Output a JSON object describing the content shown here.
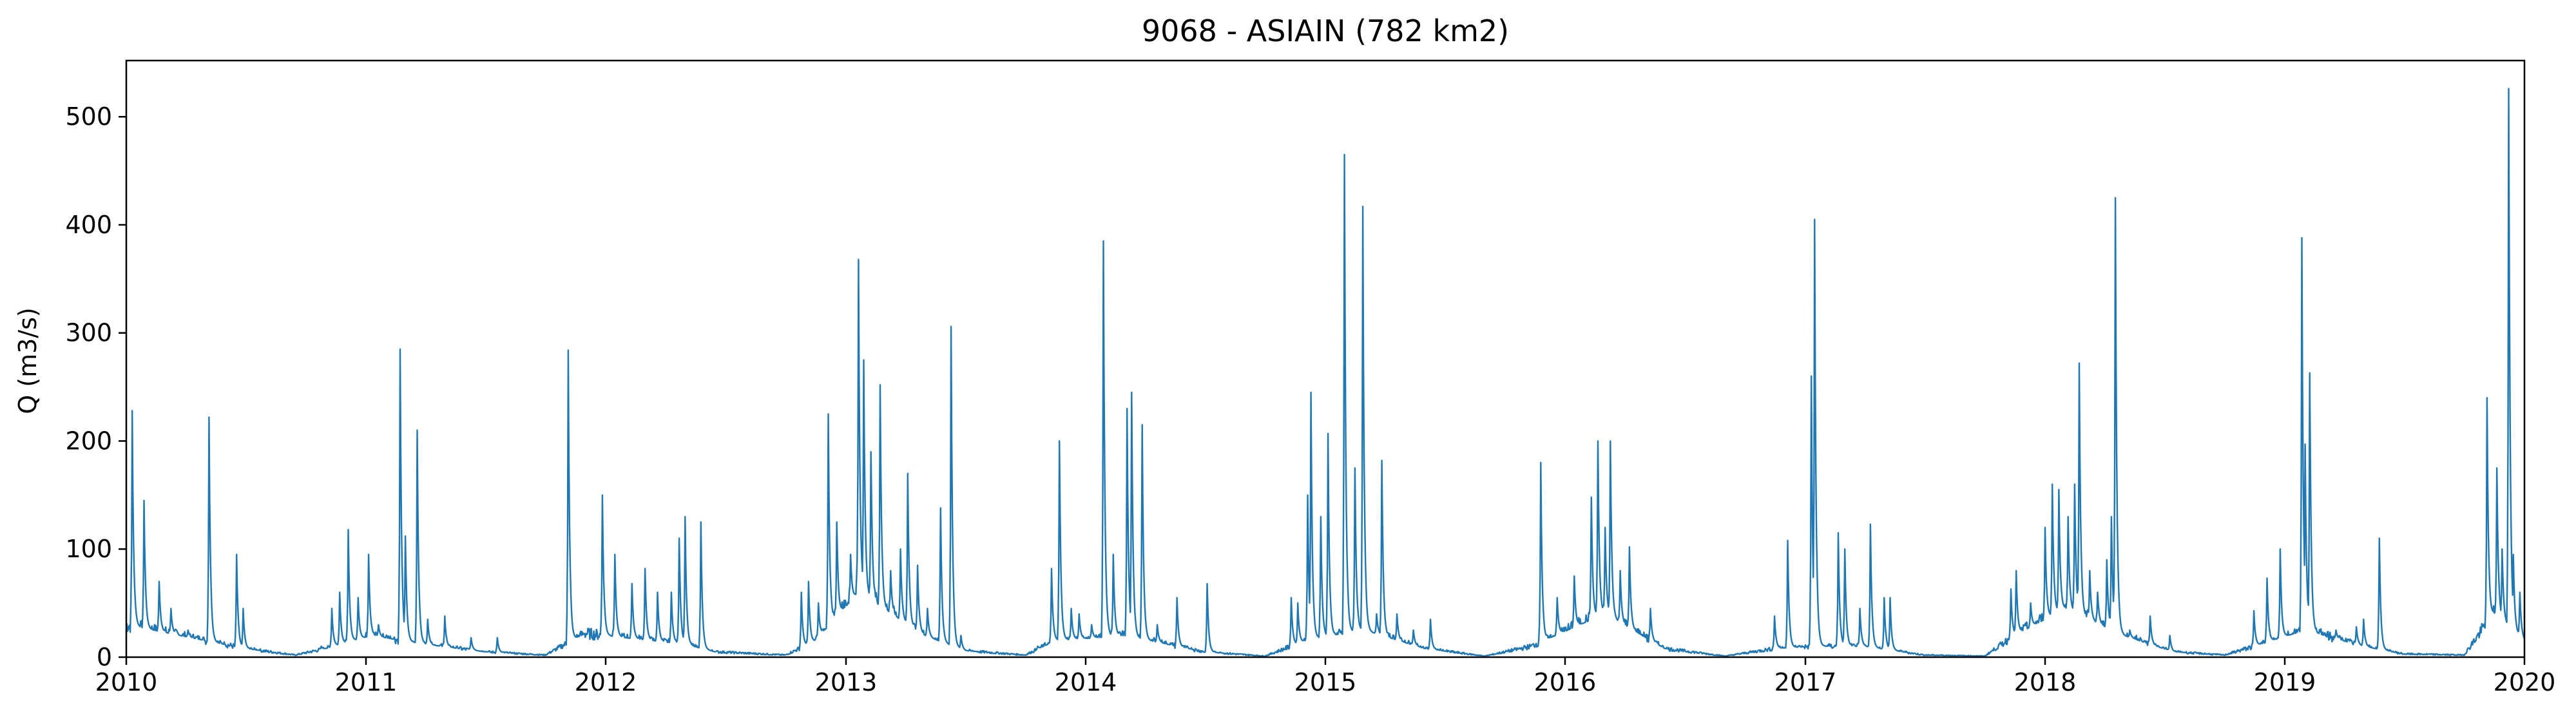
{
  "chart_data": {
    "type": "line",
    "title": "9068 - ASIAIN (782 km2)",
    "xlabel": "",
    "ylabel": "Q (m3/s)",
    "xlim": [
      "2010-01-01",
      "2020-01-01"
    ],
    "ylim": [
      0,
      552
    ],
    "x_ticks": [
      "2010",
      "2011",
      "2012",
      "2013",
      "2014",
      "2015",
      "2016",
      "2017",
      "2018",
      "2019",
      "2020"
    ],
    "y_ticks": [
      0,
      100,
      200,
      300,
      400,
      500
    ],
    "grid": false,
    "line_color": "#1f77b4",
    "baseflow": [
      [
        "2010-01-01",
        30
      ],
      [
        "2010-07-01",
        8
      ],
      [
        "2010-09-15",
        2
      ],
      [
        "2010-11-01",
        8
      ],
      [
        "2011-01-10",
        20
      ],
      [
        "2011-04-01",
        12
      ],
      [
        "2011-07-01",
        5
      ],
      [
        "2011-10-01",
        2
      ],
      [
        "2011-12-01",
        22
      ],
      [
        "2012-05-01",
        12
      ],
      [
        "2012-06-15",
        5
      ],
      [
        "2012-10-01",
        2
      ],
      [
        "2012-11-15",
        15
      ],
      [
        "2013-01-20",
        60
      ],
      [
        "2013-05-01",
        20
      ],
      [
        "2013-07-01",
        6
      ],
      [
        "2013-10-01",
        2
      ],
      [
        "2013-11-15",
        15
      ],
      [
        "2014-03-01",
        20
      ],
      [
        "2014-07-01",
        5
      ],
      [
        "2014-10-01",
        1
      ],
      [
        "2014-12-01",
        15
      ],
      [
        "2015-03-01",
        25
      ],
      [
        "2015-06-01",
        8
      ],
      [
        "2015-09-01",
        1
      ],
      [
        "2015-11-10",
        10
      ],
      [
        "2016-03-01",
        40
      ],
      [
        "2016-06-01",
        8
      ],
      [
        "2016-09-01",
        1
      ],
      [
        "2016-11-15",
        8
      ],
      [
        "2017-01-15",
        10
      ],
      [
        "2017-04-01",
        10
      ],
      [
        "2017-07-01",
        2
      ],
      [
        "2017-10-01",
        1
      ],
      [
        "2017-11-15",
        20
      ],
      [
        "2018-02-01",
        45
      ],
      [
        "2018-05-01",
        20
      ],
      [
        "2018-07-15",
        5
      ],
      [
        "2018-10-01",
        2
      ],
      [
        "2018-11-15",
        10
      ],
      [
        "2019-02-01",
        25
      ],
      [
        "2019-05-01",
        10
      ],
      [
        "2019-07-01",
        3
      ],
      [
        "2019-10-01",
        2
      ],
      [
        "2019-11-15",
        40
      ],
      [
        "2020-01-01",
        15
      ]
    ],
    "peaks": [
      [
        "2010-01-10",
        228
      ],
      [
        "2010-01-28",
        145
      ],
      [
        "2010-02-20",
        70
      ],
      [
        "2010-03-10",
        45
      ],
      [
        "2010-04-05",
        25
      ],
      [
        "2010-05-07",
        222
      ],
      [
        "2010-06-18",
        95
      ],
      [
        "2010-06-28",
        45
      ],
      [
        "2010-10-25",
        10
      ],
      [
        "2010-11-10",
        45
      ],
      [
        "2010-11-22",
        60
      ],
      [
        "2010-12-05",
        118
      ],
      [
        "2010-12-20",
        55
      ],
      [
        "2011-01-05",
        95
      ],
      [
        "2011-01-20",
        30
      ],
      [
        "2011-02-22",
        285
      ],
      [
        "2011-03-02",
        112
      ],
      [
        "2011-03-20",
        210
      ],
      [
        "2011-04-05",
        35
      ],
      [
        "2011-05-01",
        38
      ],
      [
        "2011-06-10",
        18
      ],
      [
        "2011-07-20",
        18
      ],
      [
        "2011-11-05",
        284
      ],
      [
        "2011-12-27",
        150
      ],
      [
        "2012-01-15",
        95
      ],
      [
        "2012-02-10",
        68
      ],
      [
        "2012-03-01",
        82
      ],
      [
        "2012-03-20",
        60
      ],
      [
        "2012-04-10",
        60
      ],
      [
        "2012-04-22",
        110
      ],
      [
        "2012-05-01",
        130
      ],
      [
        "2012-05-25",
        125
      ],
      [
        "2012-10-25",
        60
      ],
      [
        "2012-11-05",
        70
      ],
      [
        "2012-11-20",
        50
      ],
      [
        "2012-12-05",
        225
      ],
      [
        "2012-12-18",
        125
      ],
      [
        "2013-01-08",
        95
      ],
      [
        "2013-01-20",
        368
      ],
      [
        "2013-01-28",
        275
      ],
      [
        "2013-02-08",
        190
      ],
      [
        "2013-02-22",
        252
      ],
      [
        "2013-03-10",
        80
      ],
      [
        "2013-03-25",
        100
      ],
      [
        "2013-04-05",
        170
      ],
      [
        "2013-04-20",
        85
      ],
      [
        "2013-05-05",
        45
      ],
      [
        "2013-05-25",
        138
      ],
      [
        "2013-06-10",
        306
      ],
      [
        "2013-06-25",
        20
      ],
      [
        "2013-10-20",
        10
      ],
      [
        "2013-11-10",
        82
      ],
      [
        "2013-11-22",
        200
      ],
      [
        "2013-12-10",
        45
      ],
      [
        "2013-12-22",
        40
      ],
      [
        "2014-01-10",
        30
      ],
      [
        "2014-01-28",
        385
      ],
      [
        "2014-02-12",
        95
      ],
      [
        "2014-03-05",
        230
      ],
      [
        "2014-03-12",
        245
      ],
      [
        "2014-03-28",
        215
      ],
      [
        "2014-04-20",
        30
      ],
      [
        "2014-05-20",
        55
      ],
      [
        "2014-07-05",
        68
      ],
      [
        "2014-11-10",
        55
      ],
      [
        "2014-11-20",
        50
      ],
      [
        "2014-12-05",
        150
      ],
      [
        "2014-12-10",
        245
      ],
      [
        "2014-12-25",
        130
      ],
      [
        "2015-01-05",
        207
      ],
      [
        "2015-01-30",
        465
      ],
      [
        "2015-02-15",
        175
      ],
      [
        "2015-02-27",
        417
      ],
      [
        "2015-03-20",
        40
      ],
      [
        "2015-03-28",
        182
      ],
      [
        "2015-04-20",
        40
      ],
      [
        "2015-05-15",
        25
      ],
      [
        "2015-06-10",
        35
      ],
      [
        "2015-11-25",
        180
      ],
      [
        "2015-12-20",
        55
      ],
      [
        "2016-01-15",
        75
      ],
      [
        "2016-02-10",
        148
      ],
      [
        "2016-02-20",
        200
      ],
      [
        "2016-03-02",
        120
      ],
      [
        "2016-03-10",
        200
      ],
      [
        "2016-03-25",
        80
      ],
      [
        "2016-04-08",
        102
      ],
      [
        "2016-05-10",
        45
      ],
      [
        "2016-11-15",
        38
      ],
      [
        "2016-12-05",
        108
      ],
      [
        "2017-01-10",
        260
      ],
      [
        "2017-01-15",
        405
      ],
      [
        "2017-02-20",
        115
      ],
      [
        "2017-03-02",
        100
      ],
      [
        "2017-03-25",
        45
      ],
      [
        "2017-04-10",
        123
      ],
      [
        "2017-05-01",
        55
      ],
      [
        "2017-05-10",
        55
      ],
      [
        "2017-11-10",
        63
      ],
      [
        "2017-11-18",
        80
      ],
      [
        "2017-12-10",
        50
      ],
      [
        "2018-01-01",
        120
      ],
      [
        "2018-01-12",
        160
      ],
      [
        "2018-01-22",
        155
      ],
      [
        "2018-02-05",
        130
      ],
      [
        "2018-02-15",
        160
      ],
      [
        "2018-02-22",
        272
      ],
      [
        "2018-03-10",
        80
      ],
      [
        "2018-03-22",
        60
      ],
      [
        "2018-04-05",
        90
      ],
      [
        "2018-04-12",
        130
      ],
      [
        "2018-04-18",
        425
      ],
      [
        "2018-05-10",
        25
      ],
      [
        "2018-06-10",
        38
      ],
      [
        "2018-07-10",
        20
      ],
      [
        "2018-11-15",
        43
      ],
      [
        "2018-12-05",
        73
      ],
      [
        "2018-12-25",
        100
      ],
      [
        "2019-01-27",
        388
      ],
      [
        "2019-02-01",
        197
      ],
      [
        "2019-02-08",
        263
      ],
      [
        "2019-03-20",
        25
      ],
      [
        "2019-04-20",
        28
      ],
      [
        "2019-05-01",
        35
      ],
      [
        "2019-05-25",
        110
      ],
      [
        "2019-11-05",
        240
      ],
      [
        "2019-11-20",
        175
      ],
      [
        "2019-11-28",
        100
      ],
      [
        "2019-12-08",
        526
      ],
      [
        "2019-12-15",
        95
      ],
      [
        "2019-12-25",
        60
      ]
    ]
  }
}
